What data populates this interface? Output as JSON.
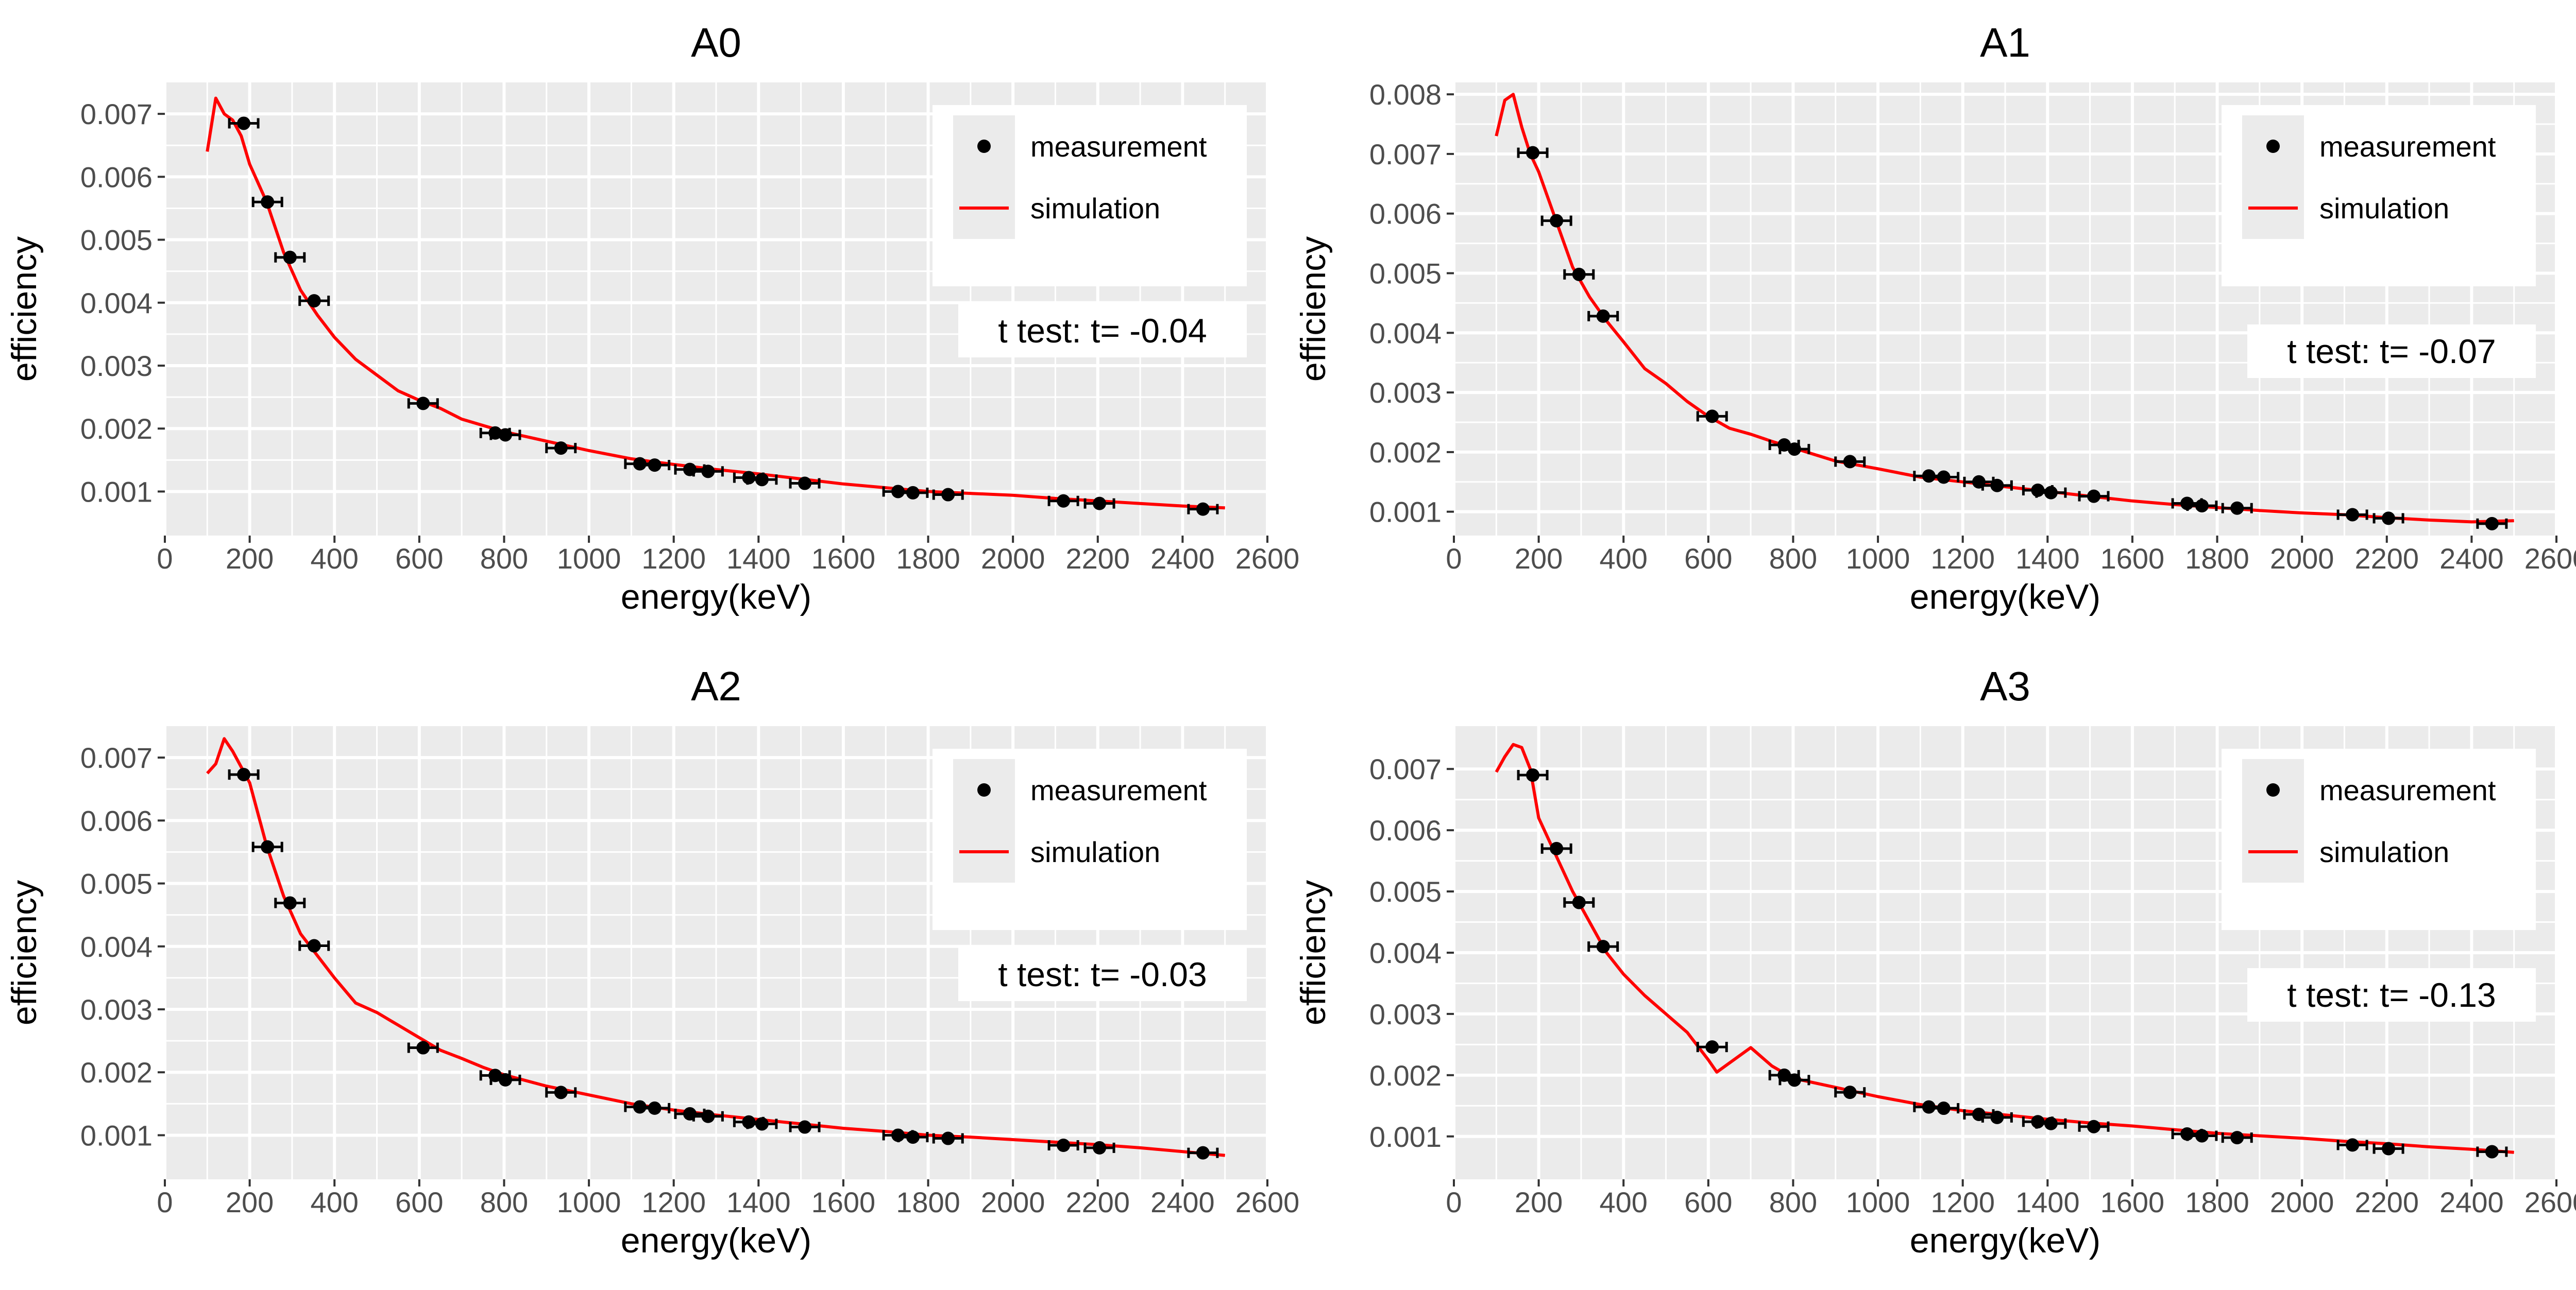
{
  "chart_data": [
    {
      "type": "line",
      "title": "A0",
      "xlabel": "energy(keV)",
      "ylabel": "efficiency",
      "xlim": [
        0,
        2600
      ],
      "ylim": [
        0.0003,
        0.0075
      ],
      "x_ticks": [
        "0",
        "200",
        "400",
        "600",
        "800",
        "1000",
        "1200",
        "1400",
        "1600",
        "1800",
        "2000",
        "2200",
        "2400",
        "2600"
      ],
      "y_ticks": [
        "0.001",
        "0.002",
        "0.003",
        "0.004",
        "0.005",
        "0.006",
        "0.007"
      ],
      "legend": [
        "measurement",
        "simulation"
      ],
      "legend_position": "top-right",
      "annotation": "t test: t= -0.04",
      "series": [
        {
          "name": "measurement",
          "marker": "point",
          "color": "#000000",
          "x": [
            186,
            242,
            295,
            352,
            609,
            779,
            803,
            934,
            1120,
            1155,
            1238,
            1281,
            1377,
            1408,
            1509,
            1729,
            1764,
            1847,
            2119,
            2204,
            2448
          ],
          "y": [
            0.00685,
            0.0056,
            0.00472,
            0.00403,
            0.0024,
            0.00193,
            0.0019,
            0.00169,
            0.00144,
            0.00142,
            0.00135,
            0.00132,
            0.00122,
            0.00119,
            0.00113,
            0.001,
            0.00098,
            0.00095,
            0.00085,
            0.00081,
            0.00072
          ]
        },
        {
          "name": "simulation",
          "marker": "line",
          "color": "#ff0000",
          "x": [
            100,
            120,
            140,
            160,
            180,
            200,
            240,
            280,
            320,
            360,
            400,
            450,
            500,
            550,
            600,
            650,
            700,
            750,
            800,
            900,
            1000,
            1100,
            1200,
            1300,
            1400,
            1500,
            1600,
            1700,
            1800,
            1900,
            2000,
            2100,
            2200,
            2300,
            2400,
            2500
          ],
          "y": [
            0.0064,
            0.00725,
            0.007,
            0.0069,
            0.00665,
            0.0062,
            0.0056,
            0.0048,
            0.0042,
            0.0038,
            0.00345,
            0.0031,
            0.00285,
            0.0026,
            0.00245,
            0.00232,
            0.00215,
            0.00205,
            0.00195,
            0.0018,
            0.00165,
            0.00152,
            0.00143,
            0.00135,
            0.00128,
            0.0012,
            0.00112,
            0.00106,
            0.001,
            0.00097,
            0.00094,
            0.00089,
            0.00085,
            0.00081,
            0.00077,
            0.00074
          ]
        }
      ]
    },
    {
      "type": "line",
      "title": "A1",
      "xlabel": "energy(keV)",
      "ylabel": "efficiency",
      "xlim": [
        0,
        2600
      ],
      "ylim": [
        0.0006,
        0.0082
      ],
      "x_ticks": [
        "0",
        "200",
        "400",
        "600",
        "800",
        "1000",
        "1200",
        "1400",
        "1600",
        "1800",
        "2000",
        "2200",
        "2400",
        "2600"
      ],
      "y_ticks": [
        "0.001",
        "0.002",
        "0.003",
        "0.004",
        "0.005",
        "0.006",
        "0.007",
        "0.008"
      ],
      "legend": [
        "measurement",
        "simulation"
      ],
      "legend_position": "top-right",
      "annotation": "t test: t= -0.07",
      "series": [
        {
          "name": "measurement",
          "marker": "point",
          "color": "#000000",
          "x": [
            186,
            242,
            295,
            352,
            609,
            779,
            803,
            934,
            1120,
            1155,
            1238,
            1281,
            1377,
            1408,
            1509,
            1729,
            1764,
            1847,
            2119,
            2204,
            2448
          ],
          "y": [
            0.00702,
            0.00588,
            0.00498,
            0.00428,
            0.0026,
            0.00212,
            0.00205,
            0.00184,
            0.0016,
            0.00158,
            0.0015,
            0.00144,
            0.00136,
            0.00132,
            0.00126,
            0.00114,
            0.0011,
            0.00106,
            0.00095,
            0.00089,
            0.0008
          ]
        },
        {
          "name": "simulation",
          "marker": "line",
          "color": "#ff0000",
          "x": [
            100,
            120,
            140,
            160,
            180,
            200,
            240,
            280,
            320,
            360,
            400,
            450,
            500,
            550,
            600,
            650,
            700,
            750,
            800,
            900,
            1000,
            1100,
            1200,
            1300,
            1400,
            1500,
            1600,
            1700,
            1800,
            1900,
            2000,
            2100,
            2200,
            2300,
            2400,
            2500
          ],
          "y": [
            0.0073,
            0.0079,
            0.008,
            0.00745,
            0.007,
            0.0067,
            0.0059,
            0.0051,
            0.0046,
            0.0042,
            0.00385,
            0.0034,
            0.00315,
            0.00285,
            0.0026,
            0.0024,
            0.0023,
            0.00218,
            0.00207,
            0.00185,
            0.00172,
            0.00158,
            0.0015,
            0.00142,
            0.00134,
            0.00126,
            0.00118,
            0.00112,
            0.00107,
            0.00102,
            0.00098,
            0.00095,
            0.0009,
            0.00086,
            0.00083,
            0.00085
          ]
        }
      ]
    },
    {
      "type": "line",
      "title": "A2",
      "xlabel": "energy(keV)",
      "ylabel": "efficiency",
      "xlim": [
        0,
        2600
      ],
      "ylim": [
        0.0003,
        0.0075
      ],
      "x_ticks": [
        "0",
        "200",
        "400",
        "600",
        "800",
        "1000",
        "1200",
        "1400",
        "1600",
        "1800",
        "2000",
        "2200",
        "2400",
        "2600"
      ],
      "y_ticks": [
        "0.001",
        "0.002",
        "0.003",
        "0.004",
        "0.005",
        "0.006",
        "0.007"
      ],
      "legend": [
        "measurement",
        "simulation"
      ],
      "legend_position": "top-right",
      "annotation": "t test: t= -0.03",
      "series": [
        {
          "name": "measurement",
          "marker": "point",
          "color": "#000000",
          "x": [
            186,
            242,
            295,
            352,
            609,
            779,
            803,
            934,
            1120,
            1155,
            1238,
            1281,
            1377,
            1408,
            1509,
            1729,
            1764,
            1847,
            2119,
            2204,
            2448
          ],
          "y": [
            0.00673,
            0.00558,
            0.00469,
            0.00401,
            0.00239,
            0.00195,
            0.00188,
            0.00168,
            0.00145,
            0.00143,
            0.00134,
            0.0013,
            0.00121,
            0.00118,
            0.00113,
            0.001,
            0.00097,
            0.00095,
            0.00084,
            0.0008,
            0.00072
          ]
        },
        {
          "name": "simulation",
          "marker": "line",
          "color": "#ff0000",
          "x": [
            100,
            120,
            140,
            160,
            180,
            200,
            240,
            280,
            320,
            360,
            400,
            450,
            500,
            550,
            600,
            650,
            700,
            750,
            800,
            900,
            1000,
            1100,
            1200,
            1300,
            1400,
            1500,
            1600,
            1700,
            1800,
            1900,
            2000,
            2100,
            2200,
            2300,
            2400,
            2500
          ],
          "y": [
            0.00675,
            0.0069,
            0.0073,
            0.0071,
            0.00685,
            0.0066,
            0.0056,
            0.0048,
            0.0042,
            0.00385,
            0.0035,
            0.0031,
            0.00295,
            0.00275,
            0.00255,
            0.00235,
            0.00222,
            0.00208,
            0.00196,
            0.00178,
            0.00164,
            0.0015,
            0.0014,
            0.00132,
            0.00125,
            0.00118,
            0.00111,
            0.00106,
            0.001,
            0.00097,
            0.00093,
            0.00089,
            0.00085,
            0.0008,
            0.00074,
            0.00068
          ]
        }
      ]
    },
    {
      "type": "line",
      "title": "A3",
      "xlabel": "energy(keV)",
      "ylabel": "efficiency",
      "xlim": [
        0,
        2600
      ],
      "ylim": [
        0.0003,
        0.0077
      ],
      "x_ticks": [
        "0",
        "200",
        "400",
        "600",
        "800",
        "1000",
        "1200",
        "1400",
        "1600",
        "1800",
        "2000",
        "2200",
        "2400",
        "2600"
      ],
      "y_ticks": [
        "0.001",
        "0.002",
        "0.003",
        "0.004",
        "0.005",
        "0.006",
        "0.007"
      ],
      "legend": [
        "measurement",
        "simulation"
      ],
      "legend_position": "top-right",
      "annotation": "t test: t= -0.13",
      "series": [
        {
          "name": "measurement",
          "marker": "point",
          "color": "#000000",
          "x": [
            186,
            242,
            295,
            352,
            609,
            779,
            803,
            934,
            1120,
            1155,
            1238,
            1281,
            1377,
            1408,
            1509,
            1729,
            1764,
            1847,
            2119,
            2204,
            2448
          ],
          "y": [
            0.0069,
            0.0057,
            0.00482,
            0.0041,
            0.00246,
            0.002,
            0.00192,
            0.00172,
            0.00148,
            0.00146,
            0.00136,
            0.00131,
            0.00124,
            0.00121,
            0.00116,
            0.00104,
            0.00101,
            0.00098,
            0.00086,
            0.0008,
            0.00075
          ]
        },
        {
          "name": "simulation",
          "marker": "line",
          "color": "#ff0000",
          "x": [
            100,
            120,
            140,
            160,
            180,
            200,
            240,
            280,
            320,
            360,
            400,
            450,
            500,
            550,
            600,
            620,
            650,
            700,
            750,
            800,
            900,
            1000,
            1100,
            1200,
            1300,
            1400,
            1500,
            1600,
            1700,
            1800,
            1900,
            2000,
            2100,
            2200,
            2300,
            2400,
            2500
          ],
          "y": [
            0.00695,
            0.0072,
            0.0074,
            0.00735,
            0.007,
            0.0062,
            0.0056,
            0.005,
            0.0045,
            0.004,
            0.00365,
            0.0033,
            0.003,
            0.0027,
            0.00225,
            0.00205,
            0.0022,
            0.00245,
            0.00215,
            0.00195,
            0.0018,
            0.00165,
            0.00152,
            0.00142,
            0.00135,
            0.00128,
            0.00122,
            0.00117,
            0.00111,
            0.00105,
            0.00101,
            0.00097,
            0.00092,
            0.00088,
            0.00083,
            0.00079,
            0.00074
          ]
        }
      ]
    }
  ]
}
